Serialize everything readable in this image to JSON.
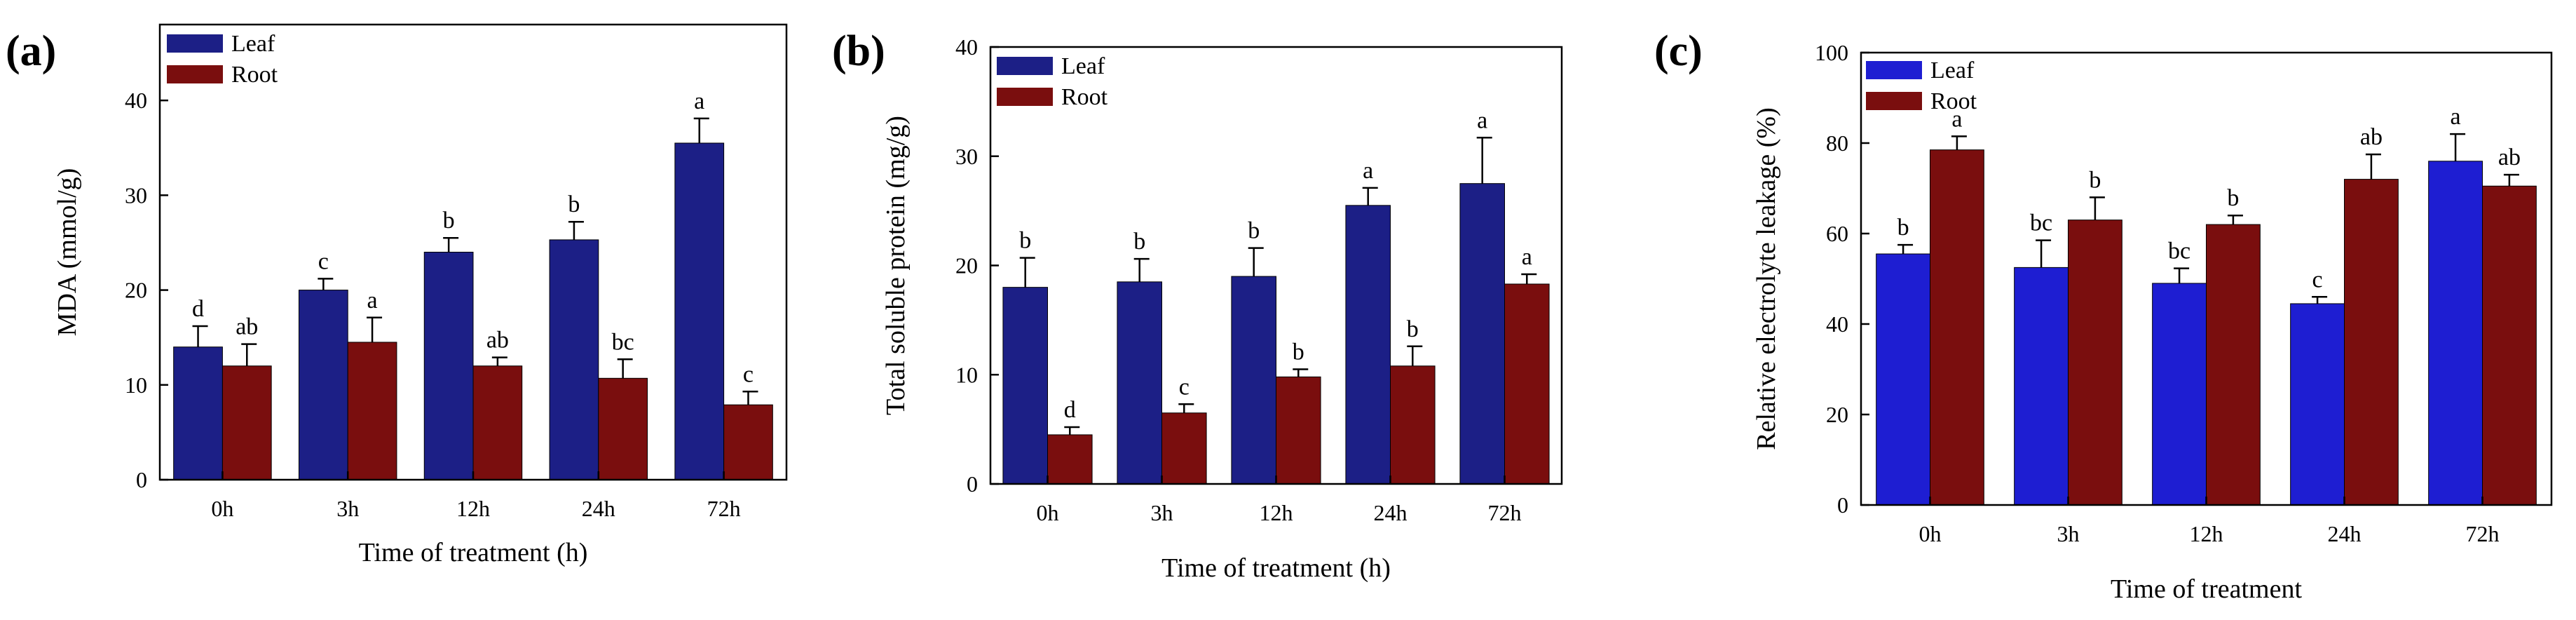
{
  "colors": {
    "leaf_a": "#1c1f86",
    "root_a": "#7a0e0e",
    "leaf_c": "#1e1ed2",
    "root_c": "#7a0e0e",
    "axis": "#000000"
  },
  "chart_data": [
    {
      "panel_label": "(a)",
      "type": "bar",
      "categories": [
        "0h",
        "3h",
        "12h",
        "24h",
        "72h"
      ],
      "series": [
        {
          "name": "Leaf",
          "values": [
            14.0,
            20.0,
            24.0,
            25.3,
            35.5
          ],
          "errors": [
            2.2,
            1.2,
            1.5,
            1.9,
            2.6
          ],
          "letters": [
            "d",
            "c",
            "b",
            "b",
            "a"
          ]
        },
        {
          "name": "Root",
          "values": [
            12.0,
            14.5,
            12.0,
            10.7,
            7.9
          ],
          "errors": [
            2.3,
            2.6,
            0.9,
            2.0,
            1.4
          ],
          "letters": [
            "ab",
            "a",
            "ab",
            "bc",
            "c"
          ]
        }
      ],
      "xlabel": "Time of treatment (h)",
      "ylabel": "MDA (mmol/g)",
      "ylim": [
        0,
        48
      ],
      "yticks": [
        0,
        10,
        20,
        30,
        40
      ],
      "legend": "top-left"
    },
    {
      "panel_label": "(b)",
      "type": "bar",
      "categories": [
        "0h",
        "3h",
        "12h",
        "24h",
        "72h"
      ],
      "series": [
        {
          "name": "Leaf",
          "values": [
            18.0,
            18.5,
            19.0,
            25.5,
            27.5
          ],
          "errors": [
            2.7,
            2.1,
            2.6,
            1.6,
            4.2
          ],
          "letters": [
            "b",
            "b",
            "b",
            "a",
            "a"
          ]
        },
        {
          "name": "Root",
          "values": [
            4.5,
            6.5,
            9.8,
            10.8,
            18.3
          ],
          "errors": [
            0.7,
            0.8,
            0.7,
            1.8,
            0.9
          ],
          "letters": [
            "d",
            "c",
            "b",
            "b",
            "a"
          ]
        }
      ],
      "xlabel": "Time of treatment (h)",
      "ylabel": "Total soluble protein (mg/g)",
      "ylim": [
        0,
        40
      ],
      "yticks": [
        0,
        10,
        20,
        30,
        40
      ],
      "legend": "top-left"
    },
    {
      "panel_label": "(c)",
      "type": "bar",
      "categories": [
        "0h",
        "3h",
        "12h",
        "24h",
        "72h"
      ],
      "series": [
        {
          "name": "Leaf",
          "values": [
            55.5,
            52.5,
            49.0,
            44.5,
            76.0
          ],
          "errors": [
            2.0,
            6.0,
            3.3,
            1.5,
            6.0
          ],
          "letters": [
            "b",
            "bc",
            "bc",
            "c",
            "a"
          ]
        },
        {
          "name": "Root",
          "values": [
            78.5,
            63.0,
            62.0,
            72.0,
            70.5
          ],
          "errors": [
            3.0,
            5.0,
            2.0,
            5.5,
            2.5
          ],
          "letters": [
            "a",
            "b",
            "b",
            "ab",
            "ab"
          ]
        }
      ],
      "xlabel": "Time of treatment",
      "ylabel": "Relative electrolyte leakage (%)",
      "ylim": [
        0,
        100
      ],
      "yticks": [
        0,
        20,
        40,
        60,
        80,
        100
      ],
      "legend": "top-left"
    }
  ]
}
